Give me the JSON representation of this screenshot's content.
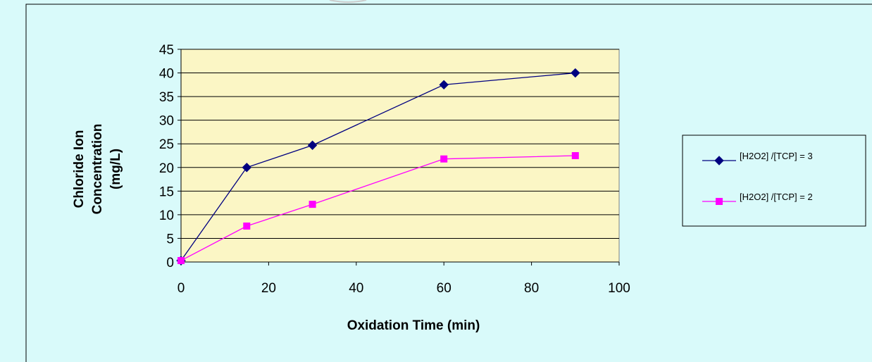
{
  "chart_data": {
    "type": "line",
    "title": "",
    "xlabel": "Oxidation Time (min)",
    "ylabel_lines": [
      "Chloride Ion",
      "Concentration",
      "(mg/L)"
    ],
    "xlim": [
      0,
      100
    ],
    "ylim": [
      0,
      45
    ],
    "x_ticks": [
      0,
      20,
      40,
      60,
      80,
      100
    ],
    "y_ticks": [
      0,
      5,
      10,
      15,
      20,
      25,
      30,
      35,
      40,
      45
    ],
    "grid": "horizontal",
    "legend_position": "right",
    "background": "#d9fafa",
    "plot_background": "#fbf6c5",
    "series": [
      {
        "name": "[H2O2] /[TCP] = 3",
        "color": "#000080",
        "marker": "diamond",
        "x": [
          0,
          15,
          30,
          60,
          90
        ],
        "y": [
          0.3,
          20,
          24.7,
          37.5,
          40
        ]
      },
      {
        "name": "[H2O2] /[TCP] = 2",
        "color": "#ff00ff",
        "marker": "square",
        "x": [
          0,
          15,
          30,
          60,
          90
        ],
        "y": [
          0.3,
          7.6,
          12.2,
          21.8,
          22.5
        ]
      }
    ]
  }
}
